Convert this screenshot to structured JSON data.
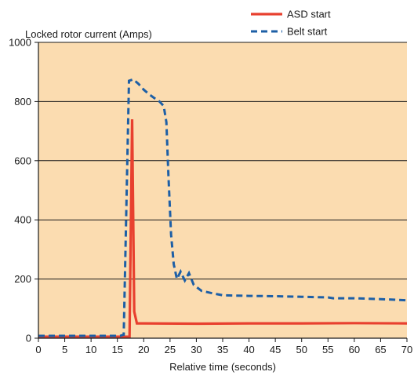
{
  "chart_data": {
    "type": "line",
    "title": "",
    "ylabel": "Locked rotor current (Amps)",
    "xlabel": "Relative time (seconds)",
    "xlim": [
      0,
      70
    ],
    "ylim": [
      0,
      1000
    ],
    "xticks": [
      0,
      5,
      10,
      15,
      20,
      25,
      30,
      35,
      40,
      45,
      50,
      55,
      60,
      65,
      70
    ],
    "yticks": [
      0,
      200,
      400,
      600,
      800,
      1000
    ],
    "grid": "horizontal",
    "legend_position": "top-right",
    "series": [
      {
        "name": "ASD start",
        "color": "#e8402f",
        "style": "solid",
        "points": [
          [
            0,
            5
          ],
          [
            16,
            5
          ],
          [
            17.3,
            5
          ],
          [
            17.8,
            740
          ],
          [
            18.2,
            90
          ],
          [
            18.7,
            50
          ],
          [
            20,
            50
          ],
          [
            30,
            49
          ],
          [
            40,
            50
          ],
          [
            50,
            50
          ],
          [
            60,
            51
          ],
          [
            70,
            50
          ]
        ]
      },
      {
        "name": "Belt start",
        "color": "#1d5fa6",
        "style": "dashed",
        "points": [
          [
            0,
            8
          ],
          [
            15.5,
            8
          ],
          [
            16.2,
            12
          ],
          [
            17.2,
            870
          ],
          [
            18,
            875
          ],
          [
            19,
            860
          ],
          [
            20,
            840
          ],
          [
            21,
            825
          ],
          [
            22,
            812
          ],
          [
            23,
            800
          ],
          [
            23.8,
            785
          ],
          [
            24.3,
            730
          ],
          [
            24.7,
            550
          ],
          [
            25.2,
            350
          ],
          [
            25.7,
            250
          ],
          [
            26.3,
            200
          ],
          [
            27,
            225
          ],
          [
            27.8,
            195
          ],
          [
            28.6,
            220
          ],
          [
            29.5,
            180
          ],
          [
            31,
            160
          ],
          [
            33,
            152
          ],
          [
            35,
            145
          ],
          [
            40,
            143
          ],
          [
            45,
            142
          ],
          [
            50,
            140
          ],
          [
            55,
            138
          ],
          [
            56,
            135
          ],
          [
            60,
            135
          ],
          [
            65,
            132
          ],
          [
            70,
            128
          ]
        ]
      }
    ]
  }
}
